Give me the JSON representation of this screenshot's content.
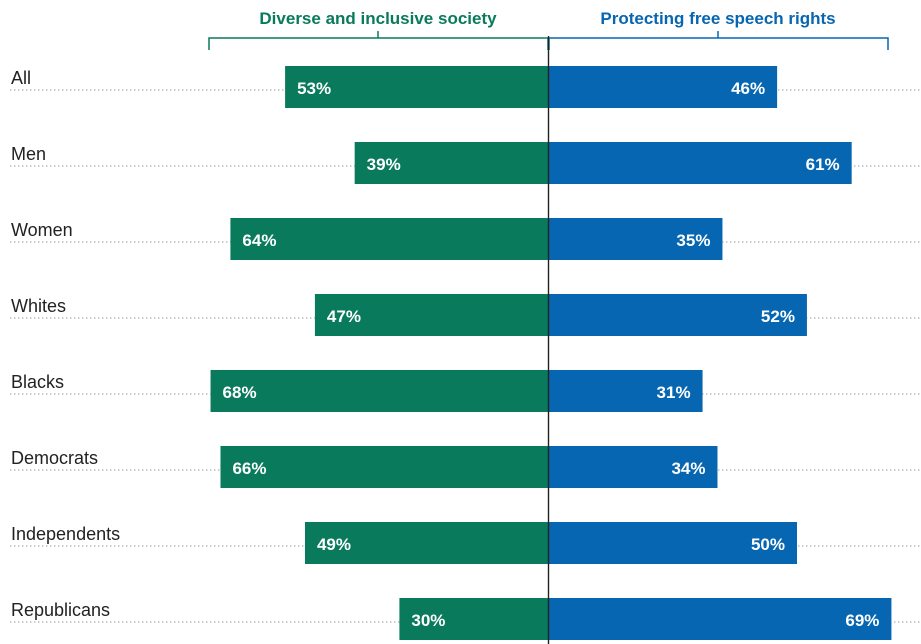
{
  "chart_data": {
    "type": "bar",
    "orientation": "horizontal-diverging",
    "categories": [
      "All",
      "Men",
      "Women",
      "Whites",
      "Blacks",
      "Democrats",
      "Independents",
      "Republicans"
    ],
    "series": [
      {
        "name": "Diverse and inclusive society",
        "values": [
          53,
          39,
          64,
          47,
          68,
          66,
          49,
          30
        ],
        "labels": [
          "53%",
          "39%",
          "64%",
          "47%",
          "68%",
          "66%",
          "49%",
          "30%"
        ],
        "color": "#0a7a5c",
        "direction": "left"
      },
      {
        "name": "Protecting free speech rights",
        "values": [
          46,
          61,
          35,
          52,
          31,
          34,
          50,
          69
        ],
        "labels": [
          "46%",
          "61%",
          "35%",
          "52%",
          "31%",
          "34%",
          "50%",
          "69%"
        ],
        "color": "#0766b1",
        "direction": "right"
      }
    ],
    "value_unit": "%",
    "xlim": [
      0,
      75
    ],
    "grid": "dotted row guides",
    "axis_color": "#222222",
    "guide_color": "#9aa0a6"
  }
}
